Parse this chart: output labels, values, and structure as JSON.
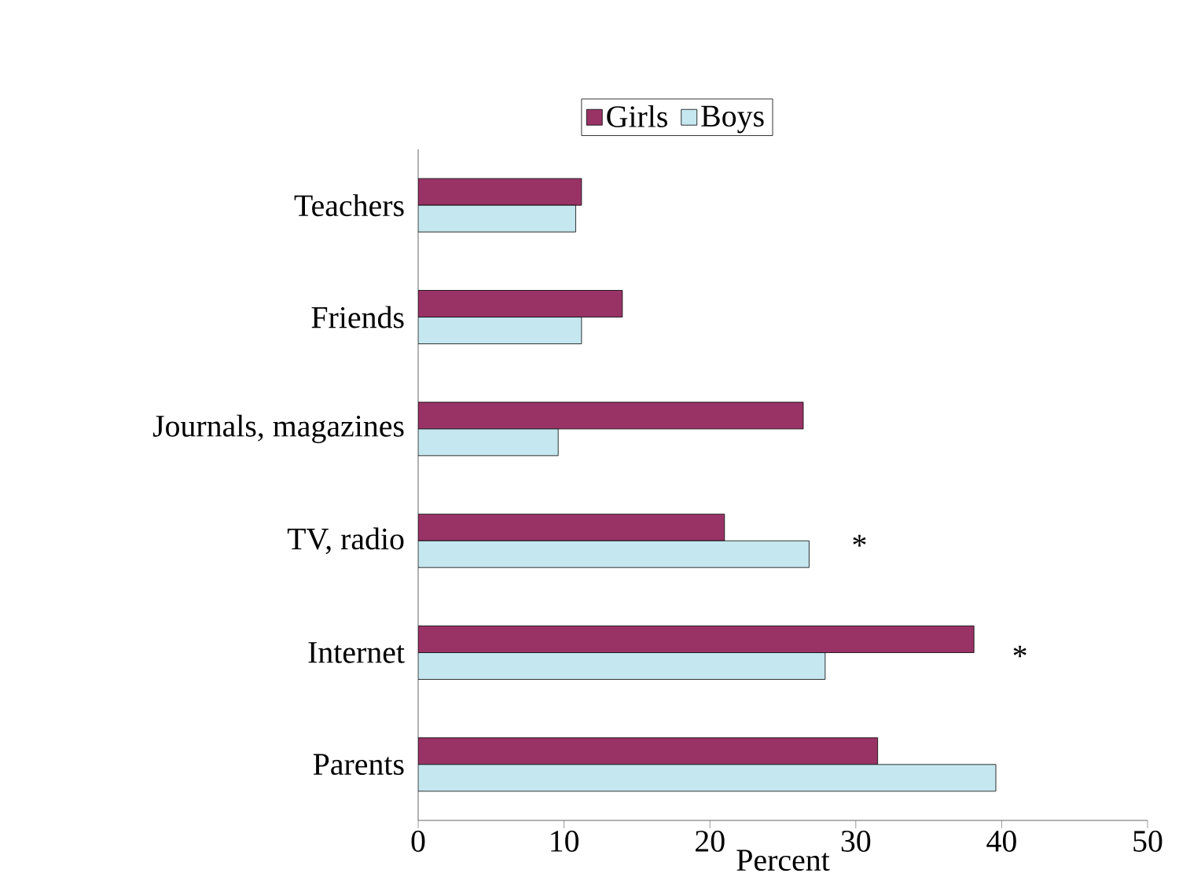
{
  "chart_data": {
    "type": "bar",
    "orientation": "horizontal",
    "categories": [
      "Teachers",
      "Friends",
      "Journals, magazines",
      "TV, radio",
      "Internet",
      "Parents"
    ],
    "series": [
      {
        "name": "Girls",
        "color": "#993366",
        "values": [
          11.2,
          14.0,
          26.4,
          21.0,
          38.1,
          31.5
        ]
      },
      {
        "name": "Boys",
        "color": "#c5e7ef",
        "values": [
          10.8,
          11.2,
          9.6,
          26.8,
          27.9,
          39.6
        ]
      }
    ],
    "xlabel": "Percent",
    "xlim": [
      0,
      50
    ],
    "xticks": [
      0,
      10,
      20,
      30,
      40,
      50
    ],
    "legend": "top",
    "grid": false,
    "annotations": [
      "*",
      "*"
    ]
  }
}
